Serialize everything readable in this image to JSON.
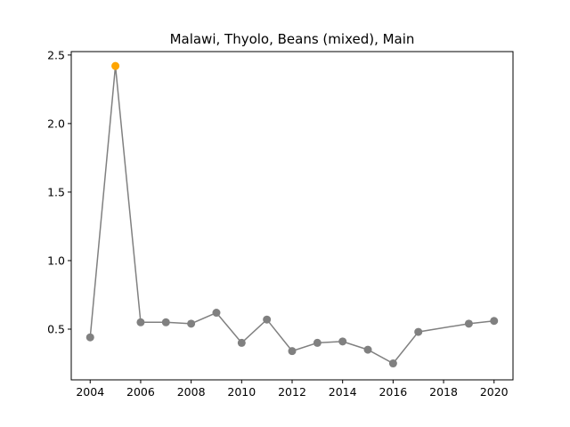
{
  "chart_data": {
    "type": "line",
    "title": "Malawi, Thyolo, Beans (mixed), Main",
    "xlabel": "",
    "ylabel": "",
    "xlim": [
      2003.25,
      2020.75
    ],
    "ylim": [
      0.13,
      2.525
    ],
    "x_ticks": [
      2004,
      2006,
      2008,
      2010,
      2012,
      2014,
      2016,
      2018,
      2020
    ],
    "y_ticks": [
      0.5,
      1.0,
      1.5,
      2.0,
      2.5
    ],
    "y_tick_labels": [
      "0.5",
      "1.0",
      "1.5",
      "2.0",
      "2.5"
    ],
    "grid": false,
    "legend": "none",
    "line_color": "#808080",
    "marker_color": "#808080",
    "highlight_color": "#ffa500",
    "series": [
      {
        "x": [
          2004,
          2005,
          2006,
          2007,
          2008,
          2009,
          2010,
          2011,
          2012,
          2013,
          2014,
          2015,
          2016,
          2017,
          2019,
          2020
        ],
        "y": [
          0.44,
          2.42,
          0.55,
          0.55,
          0.54,
          0.62,
          0.4,
          0.57,
          0.34,
          0.4,
          0.41,
          0.35,
          0.25,
          0.48,
          0.54,
          0.56
        ],
        "highlight": [
          false,
          true,
          false,
          false,
          false,
          false,
          false,
          false,
          false,
          false,
          false,
          false,
          false,
          false,
          false,
          false
        ]
      }
    ]
  }
}
